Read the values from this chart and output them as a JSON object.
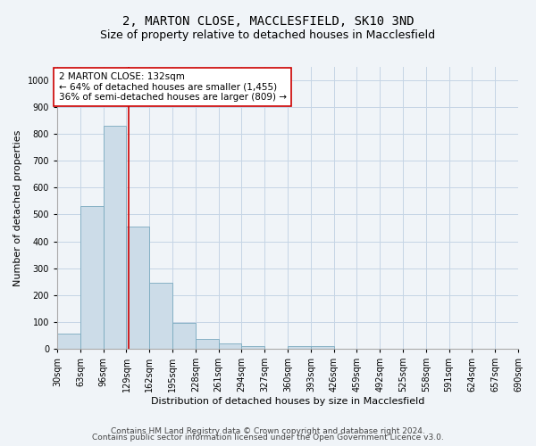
{
  "title": "2, MARTON CLOSE, MACCLESFIELD, SK10 3ND",
  "subtitle": "Size of property relative to detached houses in Macclesfield",
  "xlabel": "Distribution of detached houses by size in Macclesfield",
  "ylabel": "Number of detached properties",
  "footer1": "Contains HM Land Registry data © Crown copyright and database right 2024.",
  "footer2": "Contains public sector information licensed under the Open Government Licence v3.0.",
  "bin_edges": [
    30,
    63,
    96,
    129,
    162,
    195,
    228,
    261,
    294,
    327,
    360,
    393,
    426,
    459,
    492,
    525,
    558,
    591,
    624,
    657,
    690
  ],
  "bar_heights": [
    55,
    530,
    830,
    455,
    245,
    95,
    35,
    20,
    10,
    0,
    10,
    10,
    0,
    0,
    0,
    0,
    0,
    0,
    0,
    0
  ],
  "bar_color": "#ccdce8",
  "bar_edge_color": "#7aaabf",
  "property_size": 132,
  "vline_color": "#cc0000",
  "annotation_text": "2 MARTON CLOSE: 132sqm\n← 64% of detached houses are smaller (1,455)\n36% of semi-detached houses are larger (809) →",
  "annotation_box_color": "#cc0000",
  "annotation_text_color": "#000000",
  "ylim": [
    0,
    1050
  ],
  "title_fontsize": 10,
  "subtitle_fontsize": 9,
  "axis_label_fontsize": 8,
  "tick_fontsize": 7,
  "annotation_fontsize": 7.5,
  "footer_fontsize": 6.5,
  "background_color": "#f0f4f8",
  "plot_background_color": "#f0f4f8",
  "grid_color": "#c5d5e5"
}
